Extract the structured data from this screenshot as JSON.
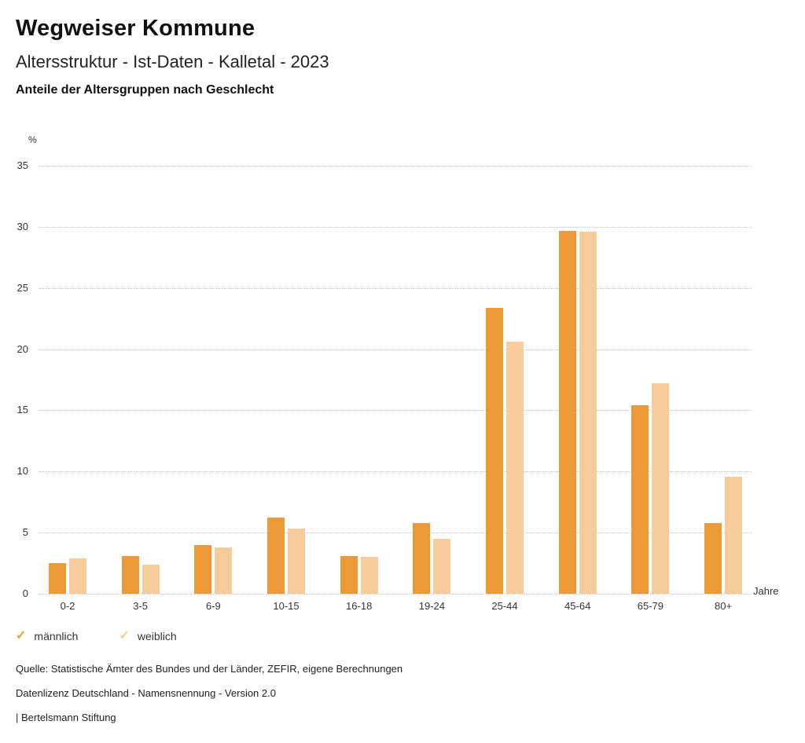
{
  "header": {
    "title": "Wegweiser Kommune",
    "subtitle": "Altersstruktur - Ist-Daten - Kalletal - 2023",
    "chart_heading": "Anteile der Altersgruppen nach Geschlecht"
  },
  "chart_data": {
    "type": "bar",
    "title": "Anteile der Altersgruppen nach Geschlecht",
    "categories": [
      "0-2",
      "3-5",
      "6-9",
      "10-15",
      "16-18",
      "19-24",
      "25-44",
      "45-64",
      "65-79",
      "80+"
    ],
    "series": [
      {
        "name": "männlich",
        "color": "#EC9937",
        "values": [
          2.5,
          3.1,
          4.0,
          6.2,
          3.1,
          5.8,
          23.4,
          29.7,
          15.4,
          5.8
        ]
      },
      {
        "name": "weiblich",
        "color": "#F6CD9A",
        "values": [
          2.9,
          2.4,
          3.8,
          5.3,
          3.0,
          4.5,
          20.6,
          29.6,
          17.2,
          9.6
        ]
      }
    ],
    "ylabel": "%",
    "xlabel": "Jahre",
    "ylim": [
      0,
      35
    ],
    "yticks": [
      0,
      5,
      10,
      15,
      20,
      25,
      30,
      35
    ],
    "grid": "horizontal-dotted",
    "legend_position": "bottom-left"
  },
  "legend": {
    "check_icon": "✓",
    "items": [
      {
        "label": "männlich",
        "color": "#EC9937"
      },
      {
        "label": "weiblich",
        "color": "#F6CD9A"
      }
    ]
  },
  "footer": {
    "source": "Quelle: Statistische Ämter des Bundes und der Länder, ZEFIR, eigene Berechnungen",
    "license": "Datenlizenz Deutschland - Namensnennung - Version 2.0",
    "attribution": "| Bertelsmann Stiftung"
  }
}
